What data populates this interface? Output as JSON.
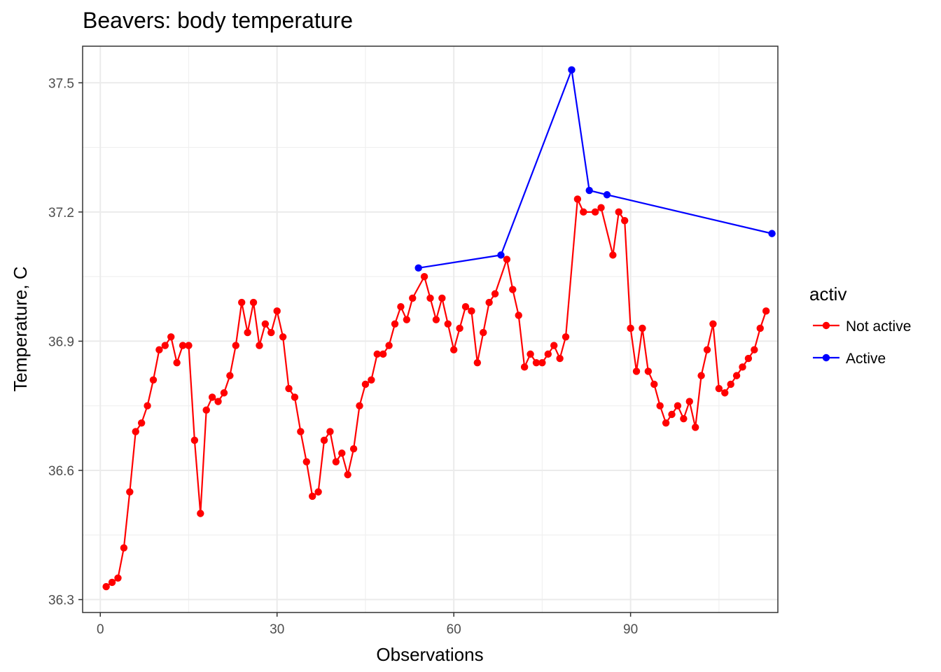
{
  "chart_data": {
    "type": "line",
    "title": "Beavers: body temperature",
    "xlabel": "Observations",
    "ylabel": "Temperature, C",
    "xlim": [
      -3,
      115
    ],
    "ylim": [
      36.27,
      37.585
    ],
    "xticks": [
      0,
      30,
      60,
      90
    ],
    "yticks": [
      36.3,
      36.6,
      36.9,
      37.2,
      37.5
    ],
    "grid": true,
    "legend": {
      "title": "activ",
      "position": "right"
    },
    "series": [
      {
        "name": "Not active",
        "color": "#ff0000",
        "x": [
          1,
          2,
          3,
          4,
          5,
          6,
          7,
          8,
          9,
          10,
          11,
          12,
          13,
          14,
          15,
          16,
          17,
          18,
          19,
          20,
          21,
          22,
          23,
          24,
          25,
          26,
          27,
          28,
          29,
          30,
          31,
          32,
          33,
          34,
          35,
          36,
          37,
          38,
          39,
          40,
          41,
          42,
          43,
          44,
          45,
          46,
          47,
          48,
          49,
          50,
          51,
          52,
          53,
          55,
          56,
          57,
          58,
          59,
          60,
          61,
          62,
          63,
          64,
          65,
          66,
          67,
          69,
          70,
          71,
          72,
          73,
          74,
          75,
          76,
          77,
          78,
          79,
          81,
          82,
          84,
          85,
          87,
          88,
          89,
          90,
          91,
          92,
          93,
          94,
          95,
          96,
          97,
          98,
          99,
          100,
          101,
          102,
          103,
          104,
          105,
          106,
          107,
          108,
          109,
          110,
          111,
          112,
          113
        ],
        "y": [
          36.33,
          36.34,
          36.35,
          36.42,
          36.55,
          36.69,
          36.71,
          36.75,
          36.81,
          36.88,
          36.89,
          36.91,
          36.85,
          36.89,
          36.89,
          36.67,
          36.5,
          36.74,
          36.77,
          36.76,
          36.78,
          36.82,
          36.89,
          36.99,
          36.92,
          36.99,
          36.89,
          36.94,
          36.92,
          36.97,
          36.91,
          36.79,
          36.77,
          36.69,
          36.62,
          36.54,
          36.55,
          36.67,
          36.69,
          36.62,
          36.64,
          36.59,
          36.65,
          36.75,
          36.8,
          36.81,
          36.87,
          36.87,
          36.89,
          36.94,
          36.98,
          36.95,
          37.0,
          37.05,
          37.0,
          36.95,
          37.0,
          36.94,
          36.88,
          36.93,
          36.98,
          36.97,
          36.85,
          36.92,
          36.99,
          37.01,
          37.09,
          37.02,
          36.96,
          36.84,
          36.87,
          36.85,
          36.85,
          36.87,
          36.89,
          36.86,
          36.91,
          37.23,
          37.2,
          37.2,
          37.21,
          37.1,
          37.2,
          37.18,
          36.93,
          36.83,
          36.93,
          36.83,
          36.8,
          36.75,
          36.71,
          36.73,
          36.75,
          36.72,
          36.76,
          36.7,
          36.82,
          36.88,
          36.94,
          36.79,
          36.78,
          36.8,
          36.82,
          36.84,
          36.86,
          36.88,
          36.93,
          36.97
        ]
      },
      {
        "name": "Active",
        "color": "#0000ff",
        "x": [
          54,
          68,
          80,
          83,
          86,
          114
        ],
        "y": [
          37.07,
          37.1,
          37.53,
          37.25,
          37.24,
          37.15
        ]
      }
    ]
  }
}
